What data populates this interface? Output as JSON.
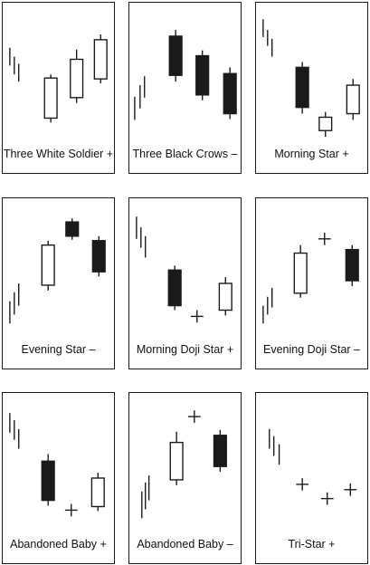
{
  "colors": {
    "ink": "#1a1a1a",
    "paper": "#ffffff"
  },
  "panels": [
    {
      "caption": "Three White Soldier +",
      "candles": [
        {
          "kind": "tick"
        },
        {
          "kind": "tick"
        },
        {
          "kind": "tick"
        },
        {
          "kind": "hollow"
        },
        {
          "kind": "hollow"
        },
        {
          "kind": "hollow"
        }
      ]
    },
    {
      "caption": "Three Black Crows –",
      "candles": [
        {
          "kind": "tick"
        },
        {
          "kind": "tick"
        },
        {
          "kind": "tick"
        },
        {
          "kind": "filled"
        },
        {
          "kind": "filled"
        },
        {
          "kind": "filled"
        }
      ]
    },
    {
      "caption": "Morning Star +",
      "candles": [
        {
          "kind": "tick"
        },
        {
          "kind": "tick"
        },
        {
          "kind": "tick"
        },
        {
          "kind": "filled"
        },
        {
          "kind": "hollow"
        },
        {
          "kind": "hollow"
        }
      ]
    },
    {
      "caption": "Evening Star –",
      "candles": [
        {
          "kind": "tick"
        },
        {
          "kind": "tick"
        },
        {
          "kind": "tick"
        },
        {
          "kind": "hollow"
        },
        {
          "kind": "filled"
        },
        {
          "kind": "filled"
        }
      ]
    },
    {
      "caption": "Morning Doji Star +",
      "candles": [
        {
          "kind": "tick"
        },
        {
          "kind": "tick"
        },
        {
          "kind": "tick"
        },
        {
          "kind": "filled"
        },
        {
          "kind": "doji"
        },
        {
          "kind": "hollow"
        }
      ]
    },
    {
      "caption": "Evening Doji Star –",
      "candles": [
        {
          "kind": "tick"
        },
        {
          "kind": "tick"
        },
        {
          "kind": "tick"
        },
        {
          "kind": "hollow"
        },
        {
          "kind": "doji"
        },
        {
          "kind": "filled"
        }
      ]
    },
    {
      "caption": "Abandoned Baby +",
      "candles": [
        {
          "kind": "tick"
        },
        {
          "kind": "tick"
        },
        {
          "kind": "tick"
        },
        {
          "kind": "filled"
        },
        {
          "kind": "doji"
        },
        {
          "kind": "hollow"
        }
      ]
    },
    {
      "caption": "Abandoned Baby –",
      "candles": [
        {
          "kind": "tick"
        },
        {
          "kind": "tick"
        },
        {
          "kind": "tick"
        },
        {
          "kind": "hollow"
        },
        {
          "kind": "doji"
        },
        {
          "kind": "filled"
        }
      ]
    },
    {
      "caption": "Tri-Star +",
      "candles": [
        {
          "kind": "tick"
        },
        {
          "kind": "tick"
        },
        {
          "kind": "tick"
        },
        {
          "kind": "doji"
        },
        {
          "kind": "doji"
        },
        {
          "kind": "doji"
        }
      ]
    }
  ]
}
